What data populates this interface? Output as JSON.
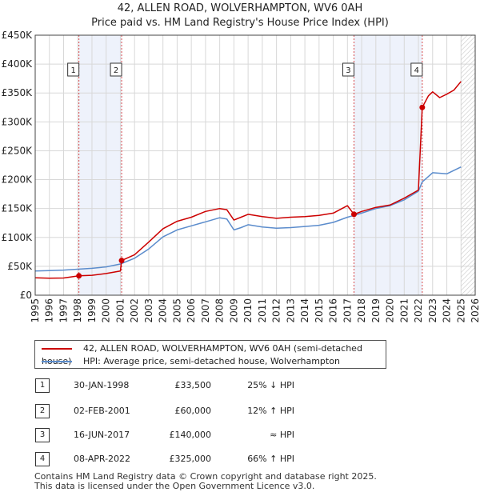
{
  "chart_data": {
    "type": "line",
    "title": "42, ALLEN ROAD, WOLVERHAMPTON, WV6 0AH",
    "subtitle": "Price paid vs. HM Land Registry's House Price Index (HPI)",
    "xlim": [
      1995,
      2026
    ],
    "ylim": [
      0,
      450000
    ],
    "x_ticks": [
      "1995",
      "1996",
      "1997",
      "1998",
      "1999",
      "2000",
      "2001",
      "2002",
      "2003",
      "2004",
      "2005",
      "2006",
      "2007",
      "2008",
      "2009",
      "2010",
      "2011",
      "2012",
      "2013",
      "2014",
      "2015",
      "2016",
      "2017",
      "2018",
      "2019",
      "2020",
      "2021",
      "2022",
      "2023",
      "2024",
      "2025",
      "2026"
    ],
    "y_ticks": [
      {
        "value": 0,
        "label": "£0"
      },
      {
        "value": 50000,
        "label": "£50K"
      },
      {
        "value": 100000,
        "label": "£100K"
      },
      {
        "value": 150000,
        "label": "£150K"
      },
      {
        "value": 200000,
        "label": "£200K"
      },
      {
        "value": 250000,
        "label": "£250K"
      },
      {
        "value": 300000,
        "label": "£300K"
      },
      {
        "value": 350000,
        "label": "£350K"
      },
      {
        "value": 400000,
        "label": "£400K"
      },
      {
        "value": 450000,
        "label": "£450K"
      }
    ],
    "grid": true,
    "shaded_periods": [
      [
        1998.08,
        2001.09
      ],
      [
        2017.46,
        2022.27
      ]
    ],
    "forecast_from": 2025.0,
    "series": [
      {
        "name": "42, ALLEN ROAD, WOLVERHAMPTON, WV6 0AH (semi-detached house)",
        "color": "#cc0000",
        "points": [
          [
            1995.0,
            30000
          ],
          [
            1996.0,
            29500
          ],
          [
            1997.0,
            29800
          ],
          [
            1998.08,
            33500
          ],
          [
            1999.0,
            34500
          ],
          [
            2000.0,
            37500
          ],
          [
            2001.0,
            42000
          ],
          [
            2001.09,
            60000
          ],
          [
            2002.0,
            70000
          ],
          [
            2003.0,
            92000
          ],
          [
            2004.0,
            115000
          ],
          [
            2005.0,
            128000
          ],
          [
            2006.0,
            135000
          ],
          [
            2007.0,
            145000
          ],
          [
            2008.0,
            150000
          ],
          [
            2008.5,
            148000
          ],
          [
            2009.0,
            130000
          ],
          [
            2009.5,
            135000
          ],
          [
            2010.0,
            140000
          ],
          [
            2011.0,
            136000
          ],
          [
            2012.0,
            133000
          ],
          [
            2013.0,
            135000
          ],
          [
            2014.0,
            136000
          ],
          [
            2015.0,
            138000
          ],
          [
            2016.0,
            142000
          ],
          [
            2017.0,
            155000
          ],
          [
            2017.46,
            140000
          ],
          [
            2018.0,
            145000
          ],
          [
            2019.0,
            152000
          ],
          [
            2020.0,
            156000
          ],
          [
            2021.0,
            168000
          ],
          [
            2022.0,
            182000
          ],
          [
            2022.27,
            325000
          ],
          [
            2022.7,
            345000
          ],
          [
            2023.0,
            352000
          ],
          [
            2023.5,
            342000
          ],
          [
            2024.0,
            348000
          ],
          [
            2024.5,
            355000
          ],
          [
            2025.0,
            370000
          ]
        ]
      },
      {
        "name": "HPI: Average price, semi-detached house, Wolverhampton",
        "color": "#5b8ccc",
        "points": [
          [
            1995.0,
            42000
          ],
          [
            1996.0,
            42500
          ],
          [
            1997.0,
            43500
          ],
          [
            1998.0,
            45000
          ],
          [
            1999.0,
            46500
          ],
          [
            2000.0,
            49000
          ],
          [
            2001.0,
            54000
          ],
          [
            2002.0,
            64000
          ],
          [
            2003.0,
            80000
          ],
          [
            2004.0,
            101000
          ],
          [
            2005.0,
            113000
          ],
          [
            2006.0,
            120000
          ],
          [
            2007.0,
            127000
          ],
          [
            2008.0,
            134000
          ],
          [
            2008.5,
            132000
          ],
          [
            2009.0,
            113000
          ],
          [
            2009.5,
            117000
          ],
          [
            2010.0,
            122000
          ],
          [
            2011.0,
            118000
          ],
          [
            2012.0,
            116000
          ],
          [
            2013.0,
            117000
          ],
          [
            2014.0,
            119000
          ],
          [
            2015.0,
            121000
          ],
          [
            2016.0,
            126000
          ],
          [
            2017.0,
            135000
          ],
          [
            2017.46,
            138000
          ],
          [
            2018.0,
            142000
          ],
          [
            2019.0,
            150000
          ],
          [
            2020.0,
            155000
          ],
          [
            2021.0,
            165000
          ],
          [
            2022.0,
            180000
          ],
          [
            2022.27,
            196000
          ],
          [
            2023.0,
            212000
          ],
          [
            2024.0,
            210000
          ],
          [
            2025.0,
            222000
          ]
        ]
      }
    ],
    "sale_markers": [
      {
        "id": "1",
        "x": 1998.08,
        "value": 33500
      },
      {
        "id": "2",
        "x": 2001.09,
        "value": 60000
      },
      {
        "id": "3",
        "x": 2017.46,
        "value": 140000
      },
      {
        "id": "4",
        "x": 2022.27,
        "value": 325000
      }
    ]
  },
  "legend": {
    "price_paid": "42, ALLEN ROAD, WOLVERHAMPTON, WV6 0AH (semi-detached house)",
    "hpi": "HPI: Average price, semi-detached house, Wolverhampton"
  },
  "sales": [
    {
      "id": "1",
      "date": "30-JAN-1998",
      "price": "£33,500",
      "hpi": "25% ↓ HPI"
    },
    {
      "id": "2",
      "date": "02-FEB-2001",
      "price": "£60,000",
      "hpi": "12% ↑ HPI"
    },
    {
      "id": "3",
      "date": "16-JUN-2017",
      "price": "£140,000",
      "hpi": "≈ HPI"
    },
    {
      "id": "4",
      "date": "08-APR-2022",
      "price": "£325,000",
      "hpi": "66% ↑ HPI"
    }
  ],
  "footer": {
    "line1": "Contains HM Land Registry data © Crown copyright and database right 2025.",
    "line2": "This data is licensed under the Open Government Licence v3.0."
  },
  "colors": {
    "price_line": "#cc0000",
    "hpi_line": "#5b8ccc",
    "shade": "#eef2fb",
    "grid": "#d8d8d8"
  }
}
